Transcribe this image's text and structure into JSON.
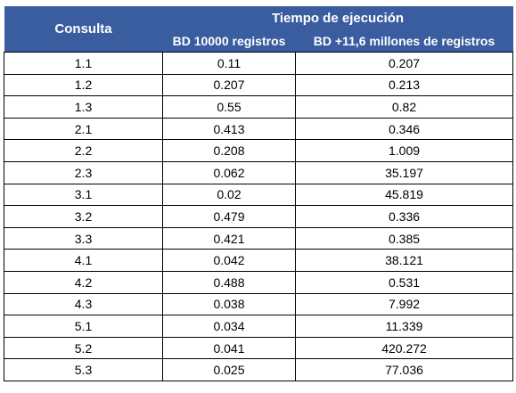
{
  "table": {
    "header": {
      "consulta": "Consulta",
      "group": "Tiempo de ejecución",
      "col_small": "BD 10000 registros",
      "col_large": "BD +11,6 millones de registros"
    },
    "rows": [
      {
        "consulta": "1.1",
        "small": "0.11",
        "large": "0.207"
      },
      {
        "consulta": "1.2",
        "small": "0.207",
        "large": "0.213"
      },
      {
        "consulta": "1.3",
        "small": "0.55",
        "large": "0.82"
      },
      {
        "consulta": "2.1",
        "small": "0.413",
        "large": "0.346"
      },
      {
        "consulta": "2.2",
        "small": "0.208",
        "large": "1.009"
      },
      {
        "consulta": "2.3",
        "small": "0.062",
        "large": "35.197"
      },
      {
        "consulta": "3.1",
        "small": "0.02",
        "large": "45.819"
      },
      {
        "consulta": "3.2",
        "small": "0.479",
        "large": "0.336"
      },
      {
        "consulta": "3.3",
        "small": "0.421",
        "large": "0.385"
      },
      {
        "consulta": "4.1",
        "small": "0.042",
        "large": "38.121"
      },
      {
        "consulta": "4.2",
        "small": "0.488",
        "large": "0.531"
      },
      {
        "consulta": "4.3",
        "small": "0.038",
        "large": "7.992"
      },
      {
        "consulta": "5.1",
        "small": "0.034",
        "large": "11.339"
      },
      {
        "consulta": "5.2",
        "small": "0.041",
        "large": "420.272"
      },
      {
        "consulta": "5.3",
        "small": "0.025",
        "large": "77.036"
      }
    ],
    "colors": {
      "header_bg": "#3a5da0",
      "header_text": "#ffffff",
      "border": "#000000"
    }
  }
}
